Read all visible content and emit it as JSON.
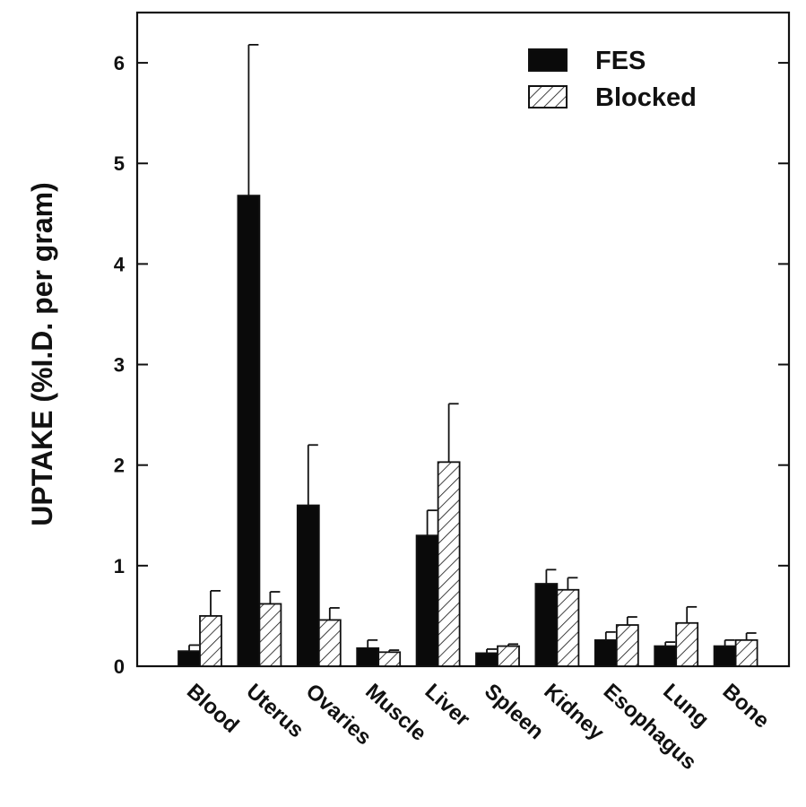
{
  "chart_data": {
    "type": "bar",
    "title": "",
    "xlabel": "",
    "ylabel": "UPTAKE (%I.D. per gram)",
    "ylim": [
      0,
      6.5
    ],
    "yticks": [
      0,
      1,
      2,
      3,
      4,
      5,
      6
    ],
    "ytick_labels": [
      "0",
      "1",
      "2",
      "3",
      "4",
      "5",
      "6"
    ],
    "categories": [
      "Blood",
      "Uterus",
      "Ovaries",
      "Muscle",
      "Liver",
      "Spleen",
      "Kidney",
      "Esophagus",
      "Lung",
      "Bone"
    ],
    "series": [
      {
        "name": "FES",
        "color": "#0a0a0a",
        "fill": "solid",
        "values": [
          0.15,
          4.68,
          1.6,
          0.18,
          1.3,
          0.13,
          0.82,
          0.26,
          0.2,
          0.2
        ],
        "errors": [
          0.06,
          1.5,
          0.6,
          0.08,
          0.25,
          0.04,
          0.14,
          0.08,
          0.04,
          0.06
        ]
      },
      {
        "name": "Blocked",
        "color": "#0a0a0a",
        "fill": "hatched",
        "values": [
          0.5,
          0.62,
          0.46,
          0.14,
          2.03,
          0.2,
          0.76,
          0.41,
          0.43,
          0.26
        ],
        "errors": [
          0.25,
          0.12,
          0.12,
          0.02,
          0.58,
          0.02,
          0.12,
          0.08,
          0.16,
          0.07
        ]
      }
    ],
    "grid": false,
    "legend_position": "top-right"
  }
}
